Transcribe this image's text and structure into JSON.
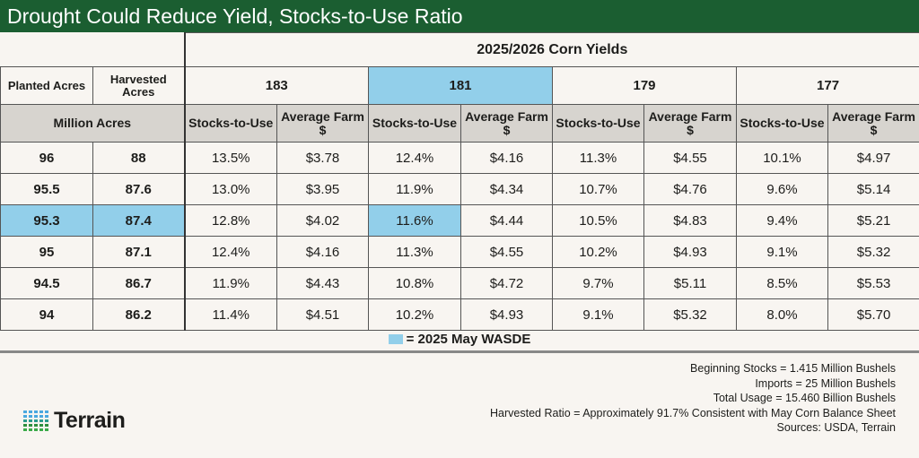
{
  "title": "Drought Could Reduce Yield, Stocks-to-Use Ratio",
  "chart_data": {
    "type": "table",
    "title": "Drought Could Reduce Yield, Stocks-to-Use Ratio",
    "super_header": "2025/2026 Corn Yields",
    "acre_headers": [
      "Planted Acres",
      "Harvested Acres"
    ],
    "acre_unit": "Million Acres",
    "yields": [
      "183",
      "181",
      "179",
      "177"
    ],
    "highlight_yield": "181",
    "sub_headers": [
      "Stocks-to-Use",
      "Average Farm $"
    ],
    "rows": [
      {
        "planted": "96",
        "harvested": "88",
        "values": [
          "13.5%",
          "$3.78",
          "12.4%",
          "$4.16",
          "11.3%",
          "$4.55",
          "10.1%",
          "$4.97"
        ]
      },
      {
        "planted": "95.5",
        "harvested": "87.6",
        "values": [
          "13.0%",
          "$3.95",
          "11.9%",
          "$4.34",
          "10.7%",
          "$4.76",
          "9.6%",
          "$5.14"
        ]
      },
      {
        "planted": "95.3",
        "harvested": "87.4",
        "highlight": true,
        "values": [
          "12.8%",
          "$4.02",
          "11.6%",
          "$4.44",
          "10.5%",
          "$4.83",
          "9.4%",
          "$5.21"
        ]
      },
      {
        "planted": "95",
        "harvested": "87.1",
        "values": [
          "12.4%",
          "$4.16",
          "11.3%",
          "$4.55",
          "10.2%",
          "$4.93",
          "9.1%",
          "$5.32"
        ]
      },
      {
        "planted": "94.5",
        "harvested": "86.7",
        "values": [
          "11.9%",
          "$4.43",
          "10.8%",
          "$4.72",
          "9.7%",
          "$5.11",
          "8.5%",
          "$5.53"
        ]
      },
      {
        "planted": "94",
        "harvested": "86.2",
        "values": [
          "11.4%",
          "$4.51",
          "10.2%",
          "$4.93",
          "9.1%",
          "$5.32",
          "8.0%",
          "$5.70"
        ]
      }
    ],
    "highlight_color": "#92cfea"
  },
  "legend": {
    "label": "= 2025 May WASDE",
    "color": "#92cfea"
  },
  "notes": [
    "Beginning Stocks = 1.415 Million Bushels",
    "Imports = 25 Million Bushels",
    "Total Usage = 15.460 Billion Bushels",
    "Harvested Ratio = Approximately 91.7% Consistent with May Corn Balance Sheet",
    "Sources: USDA, Terrain"
  ],
  "logo": {
    "text": "Terrain",
    "icon": "dot-grid-logo-icon"
  },
  "colors": {
    "title_bar": "#1b5e31",
    "header_gray": "#d7d4cf",
    "background": "#f8f5f1"
  }
}
